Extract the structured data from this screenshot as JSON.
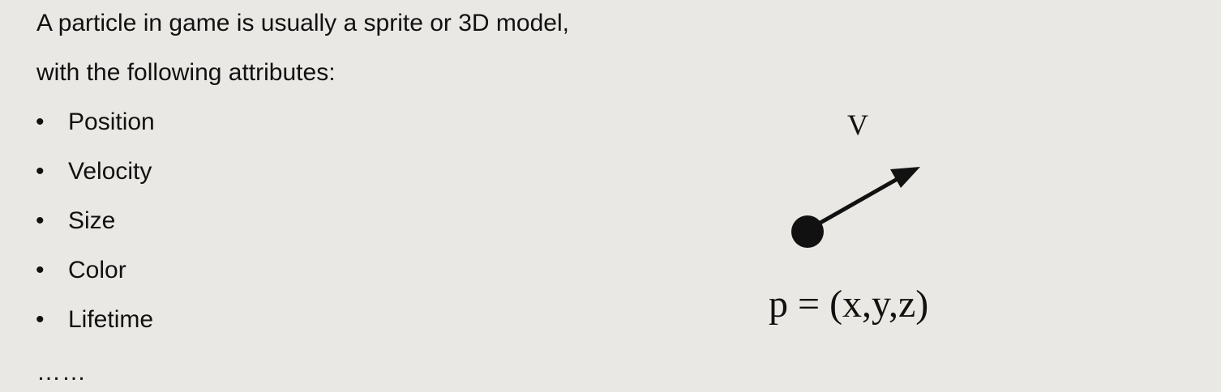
{
  "intro": {
    "line1": "A particle in game is usually a sprite or 3D model,",
    "line2": "with the following attributes:"
  },
  "bullet_symbol": "•",
  "attributes": [
    "Position",
    "Velocity",
    "Size",
    "Color",
    "Lifetime"
  ],
  "ellipsis": "……",
  "diagram": {
    "velocity_label": "V",
    "position_label": "p = (x,y,z)"
  }
}
